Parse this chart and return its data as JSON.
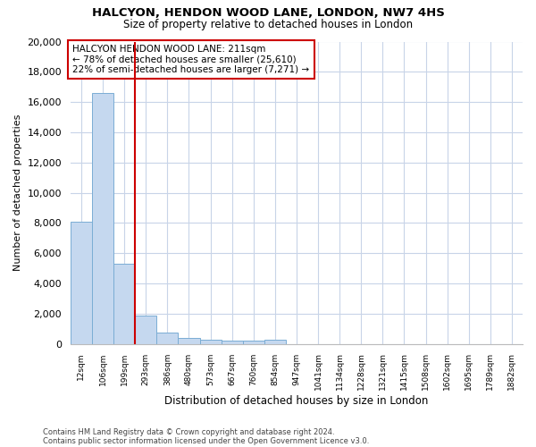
{
  "title1": "HALCYON, HENDON WOOD LANE, LONDON, NW7 4HS",
  "title2": "Size of property relative to detached houses in London",
  "xlabel": "Distribution of detached houses by size in London",
  "ylabel": "Number of detached properties",
  "bar_color": "#c5d8ef",
  "bar_edge_color": "#7aadd4",
  "grid_color": "#c8d4e8",
  "annotation_box_color": "#cc0000",
  "annotation_text": "HALCYON HENDON WOOD LANE: 211sqm\n← 78% of detached houses are smaller (25,610)\n22% of semi-detached houses are larger (7,271) →",
  "footnote1": "Contains HM Land Registry data © Crown copyright and database right 2024.",
  "footnote2": "Contains public sector information licensed under the Open Government Licence v3.0.",
  "categories": [
    "12sqm",
    "106sqm",
    "199sqm",
    "293sqm",
    "386sqm",
    "480sqm",
    "573sqm",
    "667sqm",
    "760sqm",
    "854sqm",
    "947sqm",
    "1041sqm",
    "1134sqm",
    "1228sqm",
    "1321sqm",
    "1415sqm",
    "1508sqm",
    "1602sqm",
    "1695sqm",
    "1789sqm",
    "1882sqm"
  ],
  "values": [
    8100,
    16600,
    5300,
    1850,
    750,
    380,
    270,
    200,
    190,
    270,
    0,
    0,
    0,
    0,
    0,
    0,
    0,
    0,
    0,
    0,
    0
  ],
  "ylim": [
    0,
    20000
  ],
  "yticks": [
    0,
    2000,
    4000,
    6000,
    8000,
    10000,
    12000,
    14000,
    16000,
    18000,
    20000
  ],
  "vline_bar_index": 2,
  "figsize": [
    6.0,
    5.0
  ],
  "dpi": 100
}
